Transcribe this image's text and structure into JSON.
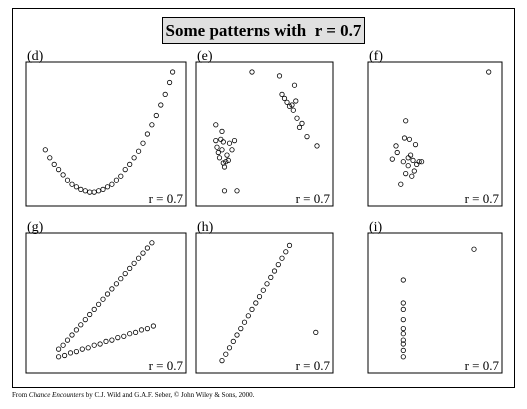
{
  "title": "Some patterns with  r = 0.7",
  "footer": {
    "prefix": "From ",
    "book": "Chance Encounters",
    "suffix": " by C.J. Wild and G.A.F. Seber, © John Wiley & Sons, 2000."
  },
  "chart_data": [
    {
      "type": "scatter",
      "label": "(d)",
      "annotation": "r = 0.7",
      "xlim": [
        0,
        100
      ],
      "ylim": [
        0,
        100
      ],
      "points": [
        [
          9,
          38
        ],
        [
          12,
          32
        ],
        [
          15,
          27
        ],
        [
          18,
          23
        ],
        [
          21,
          19
        ],
        [
          24,
          15
        ],
        [
          27,
          12
        ],
        [
          30,
          10
        ],
        [
          33,
          8
        ],
        [
          36,
          7
        ],
        [
          39,
          6
        ],
        [
          42,
          6
        ],
        [
          45,
          7
        ],
        [
          48,
          8
        ],
        [
          51,
          10
        ],
        [
          54,
          12
        ],
        [
          57,
          15
        ],
        [
          60,
          18
        ],
        [
          63,
          23
        ],
        [
          66,
          27
        ],
        [
          69,
          32
        ],
        [
          72,
          37
        ],
        [
          75,
          43
        ],
        [
          78,
          50
        ],
        [
          81,
          57
        ],
        [
          84,
          64
        ],
        [
          87,
          72
        ],
        [
          90,
          80
        ],
        [
          93,
          89
        ],
        [
          95,
          97
        ]
      ]
    },
    {
      "type": "scatter",
      "label": "(e)",
      "annotation": "r = 0.7",
      "xlim": [
        0,
        100
      ],
      "ylim": [
        0,
        100
      ],
      "points": [
        [
          11,
          57
        ],
        [
          11,
          45
        ],
        [
          12,
          40
        ],
        [
          13,
          36
        ],
        [
          14,
          32
        ],
        [
          15,
          46
        ],
        [
          16,
          38
        ],
        [
          17,
          44
        ],
        [
          17,
          28
        ],
        [
          18,
          25
        ],
        [
          19,
          29
        ],
        [
          20,
          34
        ],
        [
          21,
          30
        ],
        [
          22,
          43
        ],
        [
          24,
          38
        ],
        [
          26,
          45
        ],
        [
          16,
          52
        ],
        [
          18,
          7
        ],
        [
          28,
          7
        ],
        [
          40,
          97
        ],
        [
          62,
          94
        ],
        [
          64,
          80
        ],
        [
          66,
          77
        ],
        [
          68,
          74
        ],
        [
          70,
          71
        ],
        [
          72,
          72
        ],
        [
          73,
          68
        ],
        [
          75,
          75
        ],
        [
          76,
          62
        ],
        [
          78,
          55
        ],
        [
          74,
          87
        ],
        [
          80,
          58
        ],
        [
          84,
          48
        ],
        [
          92,
          41
        ]
      ]
    },
    {
      "type": "scatter",
      "label": "(f)",
      "annotation": "r = 0.7",
      "xlim": [
        0,
        100
      ],
      "ylim": [
        0,
        100
      ],
      "points": [
        [
          15,
          31
        ],
        [
          18,
          41
        ],
        [
          19,
          36
        ],
        [
          22,
          12
        ],
        [
          24,
          29
        ],
        [
          25,
          47
        ],
        [
          26,
          20
        ],
        [
          26,
          60
        ],
        [
          28,
          26
        ],
        [
          28,
          32
        ],
        [
          29,
          46
        ],
        [
          30,
          34
        ],
        [
          31,
          18
        ],
        [
          32,
          30
        ],
        [
          33,
          22
        ],
        [
          34,
          42
        ],
        [
          35,
          27
        ],
        [
          37,
          29
        ],
        [
          39,
          29
        ],
        [
          94,
          97
        ]
      ]
    },
    {
      "type": "scatter",
      "label": "(g)",
      "annotation": "r = 0.7",
      "xlim": [
        0,
        100
      ],
      "ylim": [
        0,
        100
      ],
      "points": [
        [
          18,
          14
        ],
        [
          21,
          17
        ],
        [
          24,
          21
        ],
        [
          27,
          25
        ],
        [
          30,
          29
        ],
        [
          33,
          33
        ],
        [
          36,
          37
        ],
        [
          39,
          41
        ],
        [
          42,
          45
        ],
        [
          45,
          49
        ],
        [
          48,
          53
        ],
        [
          51,
          57
        ],
        [
          54,
          61
        ],
        [
          57,
          65
        ],
        [
          60,
          69
        ],
        [
          63,
          73
        ],
        [
          66,
          77
        ],
        [
          69,
          81
        ],
        [
          72,
          85
        ],
        [
          75,
          89
        ],
        [
          78,
          93
        ],
        [
          81,
          97
        ],
        [
          18,
          8
        ],
        [
          22,
          9
        ],
        [
          26,
          11
        ],
        [
          30,
          12
        ],
        [
          34,
          14
        ],
        [
          38,
          15
        ],
        [
          42,
          17
        ],
        [
          46,
          18
        ],
        [
          50,
          20
        ],
        [
          54,
          21
        ],
        [
          58,
          23
        ],
        [
          62,
          24
        ],
        [
          66,
          26
        ],
        [
          70,
          27
        ],
        [
          74,
          29
        ],
        [
          78,
          30
        ],
        [
          82,
          32
        ]
      ]
    },
    {
      "type": "scatter",
      "label": "(h)",
      "annotation": "r = 0.7",
      "xlim": [
        0,
        100
      ],
      "ylim": [
        0,
        100
      ],
      "points": [
        [
          16,
          5
        ],
        [
          19,
          10
        ],
        [
          22,
          15
        ],
        [
          25,
          20
        ],
        [
          28,
          25
        ],
        [
          31,
          30
        ],
        [
          34,
          35
        ],
        [
          37,
          40
        ],
        [
          40,
          45
        ],
        [
          43,
          50
        ],
        [
          46,
          55
        ],
        [
          49,
          60
        ],
        [
          52,
          65
        ],
        [
          55,
          70
        ],
        [
          58,
          75
        ],
        [
          61,
          80
        ],
        [
          64,
          85
        ],
        [
          67,
          90
        ],
        [
          70,
          95
        ],
        [
          91,
          27
        ]
      ]
    },
    {
      "type": "scatter",
      "label": "(i)",
      "annotation": "r = 0.7",
      "xlim": [
        0,
        100
      ],
      "ylim": [
        0,
        100
      ],
      "points": [
        [
          24,
          8
        ],
        [
          24,
          13
        ],
        [
          24,
          18
        ],
        [
          24,
          21
        ],
        [
          24,
          26
        ],
        [
          24,
          30
        ],
        [
          24,
          37
        ],
        [
          24,
          45
        ],
        [
          24,
          50
        ],
        [
          24,
          68
        ],
        [
          82,
          92
        ]
      ]
    }
  ]
}
